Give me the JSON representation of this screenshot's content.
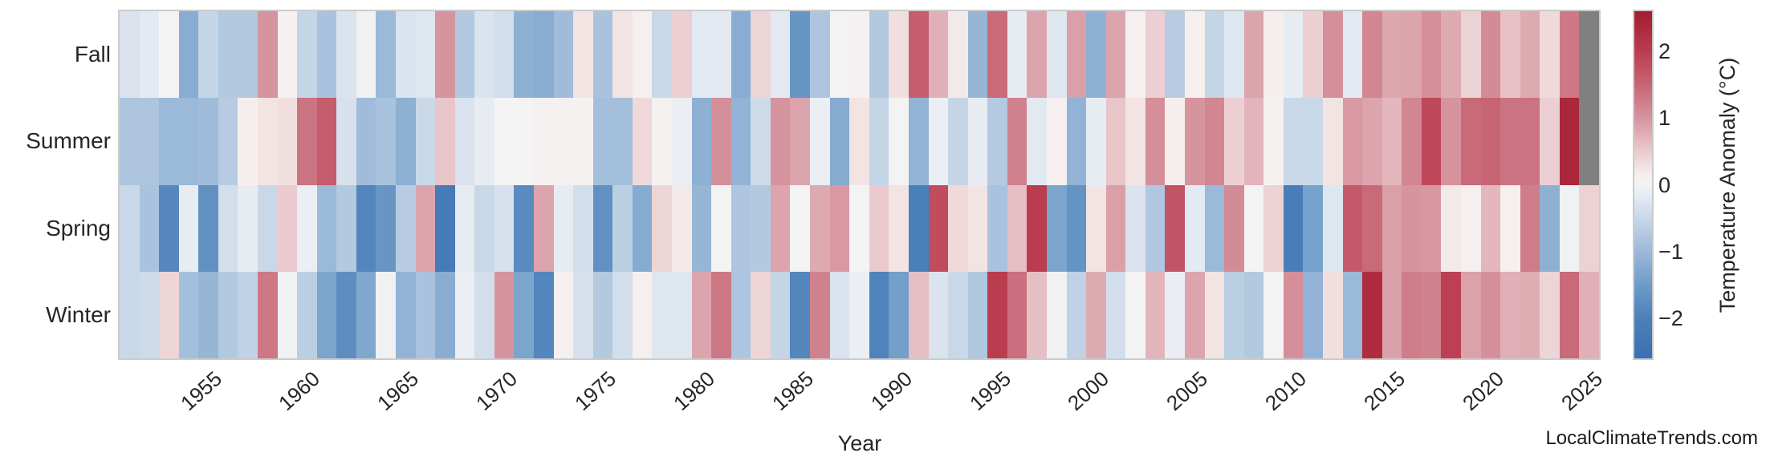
{
  "watermark": "LocalClimateTrends.com",
  "chart_data": {
    "type": "heatmap",
    "xlabel": "Year",
    "ylabel": "",
    "colorbar_label": "Temperature Anomaly (°C)",
    "legend_position": "right",
    "grid": false,
    "x_start": 1951,
    "x_end": 2025,
    "x_ticks": [
      1955,
      1960,
      1965,
      1970,
      1975,
      1980,
      1985,
      1990,
      1995,
      2000,
      2005,
      2010,
      2015,
      2020,
      2025
    ],
    "rows": [
      "Fall",
      "Summer",
      "Spring",
      "Winter"
    ],
    "value_range": [
      -2.6,
      2.6
    ],
    "colorbar_ticks": [
      {
        "value": 2,
        "label": "2"
      },
      {
        "value": 1,
        "label": "1"
      },
      {
        "value": 0,
        "label": "0"
      },
      {
        "value": -1,
        "label": "−1"
      },
      {
        "value": -2,
        "label": "−2"
      }
    ],
    "missing_color": "#808080",
    "colormap_stops": [
      [
        -2.6,
        "#3a6fb3"
      ],
      [
        -2.0,
        "#4c80ba"
      ],
      [
        -1.5,
        "#6e9cc8"
      ],
      [
        -1.0,
        "#9bb9d8"
      ],
      [
        -0.5,
        "#c9d8e8"
      ],
      [
        -0.15,
        "#e7ecf3"
      ],
      [
        0.0,
        "#f4f3f3"
      ],
      [
        0.15,
        "#f6eeed"
      ],
      [
        0.5,
        "#eacace"
      ],
      [
        1.0,
        "#d6949f"
      ],
      [
        1.5,
        "#c86574"
      ],
      [
        2.0,
        "#ba3c4f"
      ],
      [
        2.6,
        "#a41c30"
      ]
    ],
    "series": [
      {
        "name": "Fall",
        "values": [
          -0.3,
          -0.18,
          0,
          -1.2,
          -0.55,
          -0.75,
          -0.75,
          1.0,
          0.05,
          -0.55,
          -0.85,
          -0.3,
          -0.05,
          -1.0,
          -0.3,
          -0.25,
          1.0,
          -0.75,
          -0.3,
          -0.4,
          -1.15,
          -1.2,
          -0.95,
          0.25,
          -0.85,
          0.25,
          0.1,
          -0.5,
          0.45,
          -0.2,
          -0.2,
          -1.2,
          0.4,
          -0.2,
          -1.6,
          -0.8,
          0,
          0.05,
          -0.75,
          0.3,
          1.6,
          0.75,
          0.2,
          -1.05,
          1.45,
          -0.15,
          0.85,
          -0.25,
          0.9,
          -1.15,
          0.85,
          0.1,
          0.45,
          -0.7,
          0.1,
          -0.55,
          -0.25,
          0.85,
          0.15,
          -0.15,
          0.45,
          1.05,
          -0.2,
          1.15,
          0.82,
          0.85,
          1.05,
          0.8,
          0.42,
          1.1,
          0.58,
          0.8,
          0.35,
          1.3,
          null
        ]
      },
      {
        "name": "Summer",
        "values": [
          -0.8,
          -0.8,
          -1.0,
          -1.0,
          -0.95,
          -0.7,
          0.15,
          0.25,
          0.3,
          1.35,
          1.6,
          -0.35,
          -0.95,
          -0.85,
          -1.15,
          -0.5,
          0.55,
          -0.3,
          -0.15,
          0,
          0,
          0.08,
          0.05,
          0.05,
          -0.9,
          -0.9,
          0.35,
          0.05,
          -0.1,
          -1.15,
          1.05,
          -1.1,
          -0.45,
          1.0,
          0.85,
          -0.1,
          -1.25,
          0.25,
          -0.55,
          0,
          -1.1,
          -0.1,
          -0.55,
          -0.15,
          -0.72,
          1.2,
          -0.2,
          0.1,
          -1.1,
          -0.15,
          0.55,
          0.25,
          1.05,
          0.15,
          1.0,
          1.15,
          0.45,
          0.7,
          0.05,
          -0.5,
          -0.5,
          0.25,
          0.95,
          0.85,
          0.68,
          1.15,
          1.85,
          1.0,
          1.45,
          1.5,
          1.35,
          1.35,
          0.45,
          2.4,
          null
        ]
      },
      {
        "name": "Spring",
        "values": [
          -0.5,
          -0.85,
          -1.85,
          -0.15,
          -1.7,
          -0.4,
          -0.15,
          -0.5,
          0.5,
          -0.1,
          -1.0,
          -0.75,
          -1.9,
          -1.6,
          -0.7,
          0.85,
          -2.2,
          -0.15,
          -0.5,
          -0.35,
          -1.8,
          0.85,
          -0.15,
          -0.4,
          -1.7,
          -0.65,
          -1.25,
          0.4,
          0.2,
          -1.05,
          0,
          -0.8,
          -0.75,
          0.85,
          0,
          0.8,
          0.95,
          0,
          0.5,
          0.25,
          -2.05,
          1.8,
          0.35,
          0.25,
          -0.85,
          0.6,
          2.0,
          -1.35,
          -1.65,
          0.25,
          0.9,
          -0.3,
          -0.78,
          1.7,
          -0.18,
          -1.0,
          1.1,
          0,
          0.42,
          -2.1,
          -1.4,
          -0.25,
          1.65,
          1.45,
          0.9,
          1.0,
          0.97,
          0.2,
          0.1,
          0.68,
          0.12,
          1.25,
          -1.15,
          -0.05,
          0.42
        ]
      },
      {
        "name": "Winter",
        "values": [
          -0.5,
          -0.45,
          0.4,
          -0.9,
          -1.05,
          -0.75,
          -0.6,
          1.3,
          -0.05,
          -0.65,
          -1.35,
          -1.75,
          -1.3,
          -0.05,
          -1.1,
          -0.85,
          -1.2,
          -0.1,
          -0.4,
          1.0,
          -1.35,
          -1.9,
          0.1,
          -0.35,
          -0.75,
          -0.4,
          0.1,
          -0.25,
          -0.25,
          0.85,
          1.3,
          -0.8,
          0.4,
          -0.55,
          -1.9,
          1.2,
          -0.3,
          -0.1,
          -1.95,
          -1.45,
          0.6,
          -0.3,
          -0.5,
          -0.78,
          2.0,
          1.4,
          0.6,
          -0.05,
          -0.6,
          0.8,
          -0.4,
          0,
          0.7,
          -0.12,
          0.85,
          0.25,
          -0.65,
          -0.75,
          0,
          1.05,
          -1.1,
          0.3,
          -1.0,
          2.3,
          0.88,
          1.25,
          1.2,
          1.95,
          0.87,
          1.05,
          0.75,
          0.78,
          0.4,
          1.45,
          0.75
        ]
      }
    ]
  }
}
